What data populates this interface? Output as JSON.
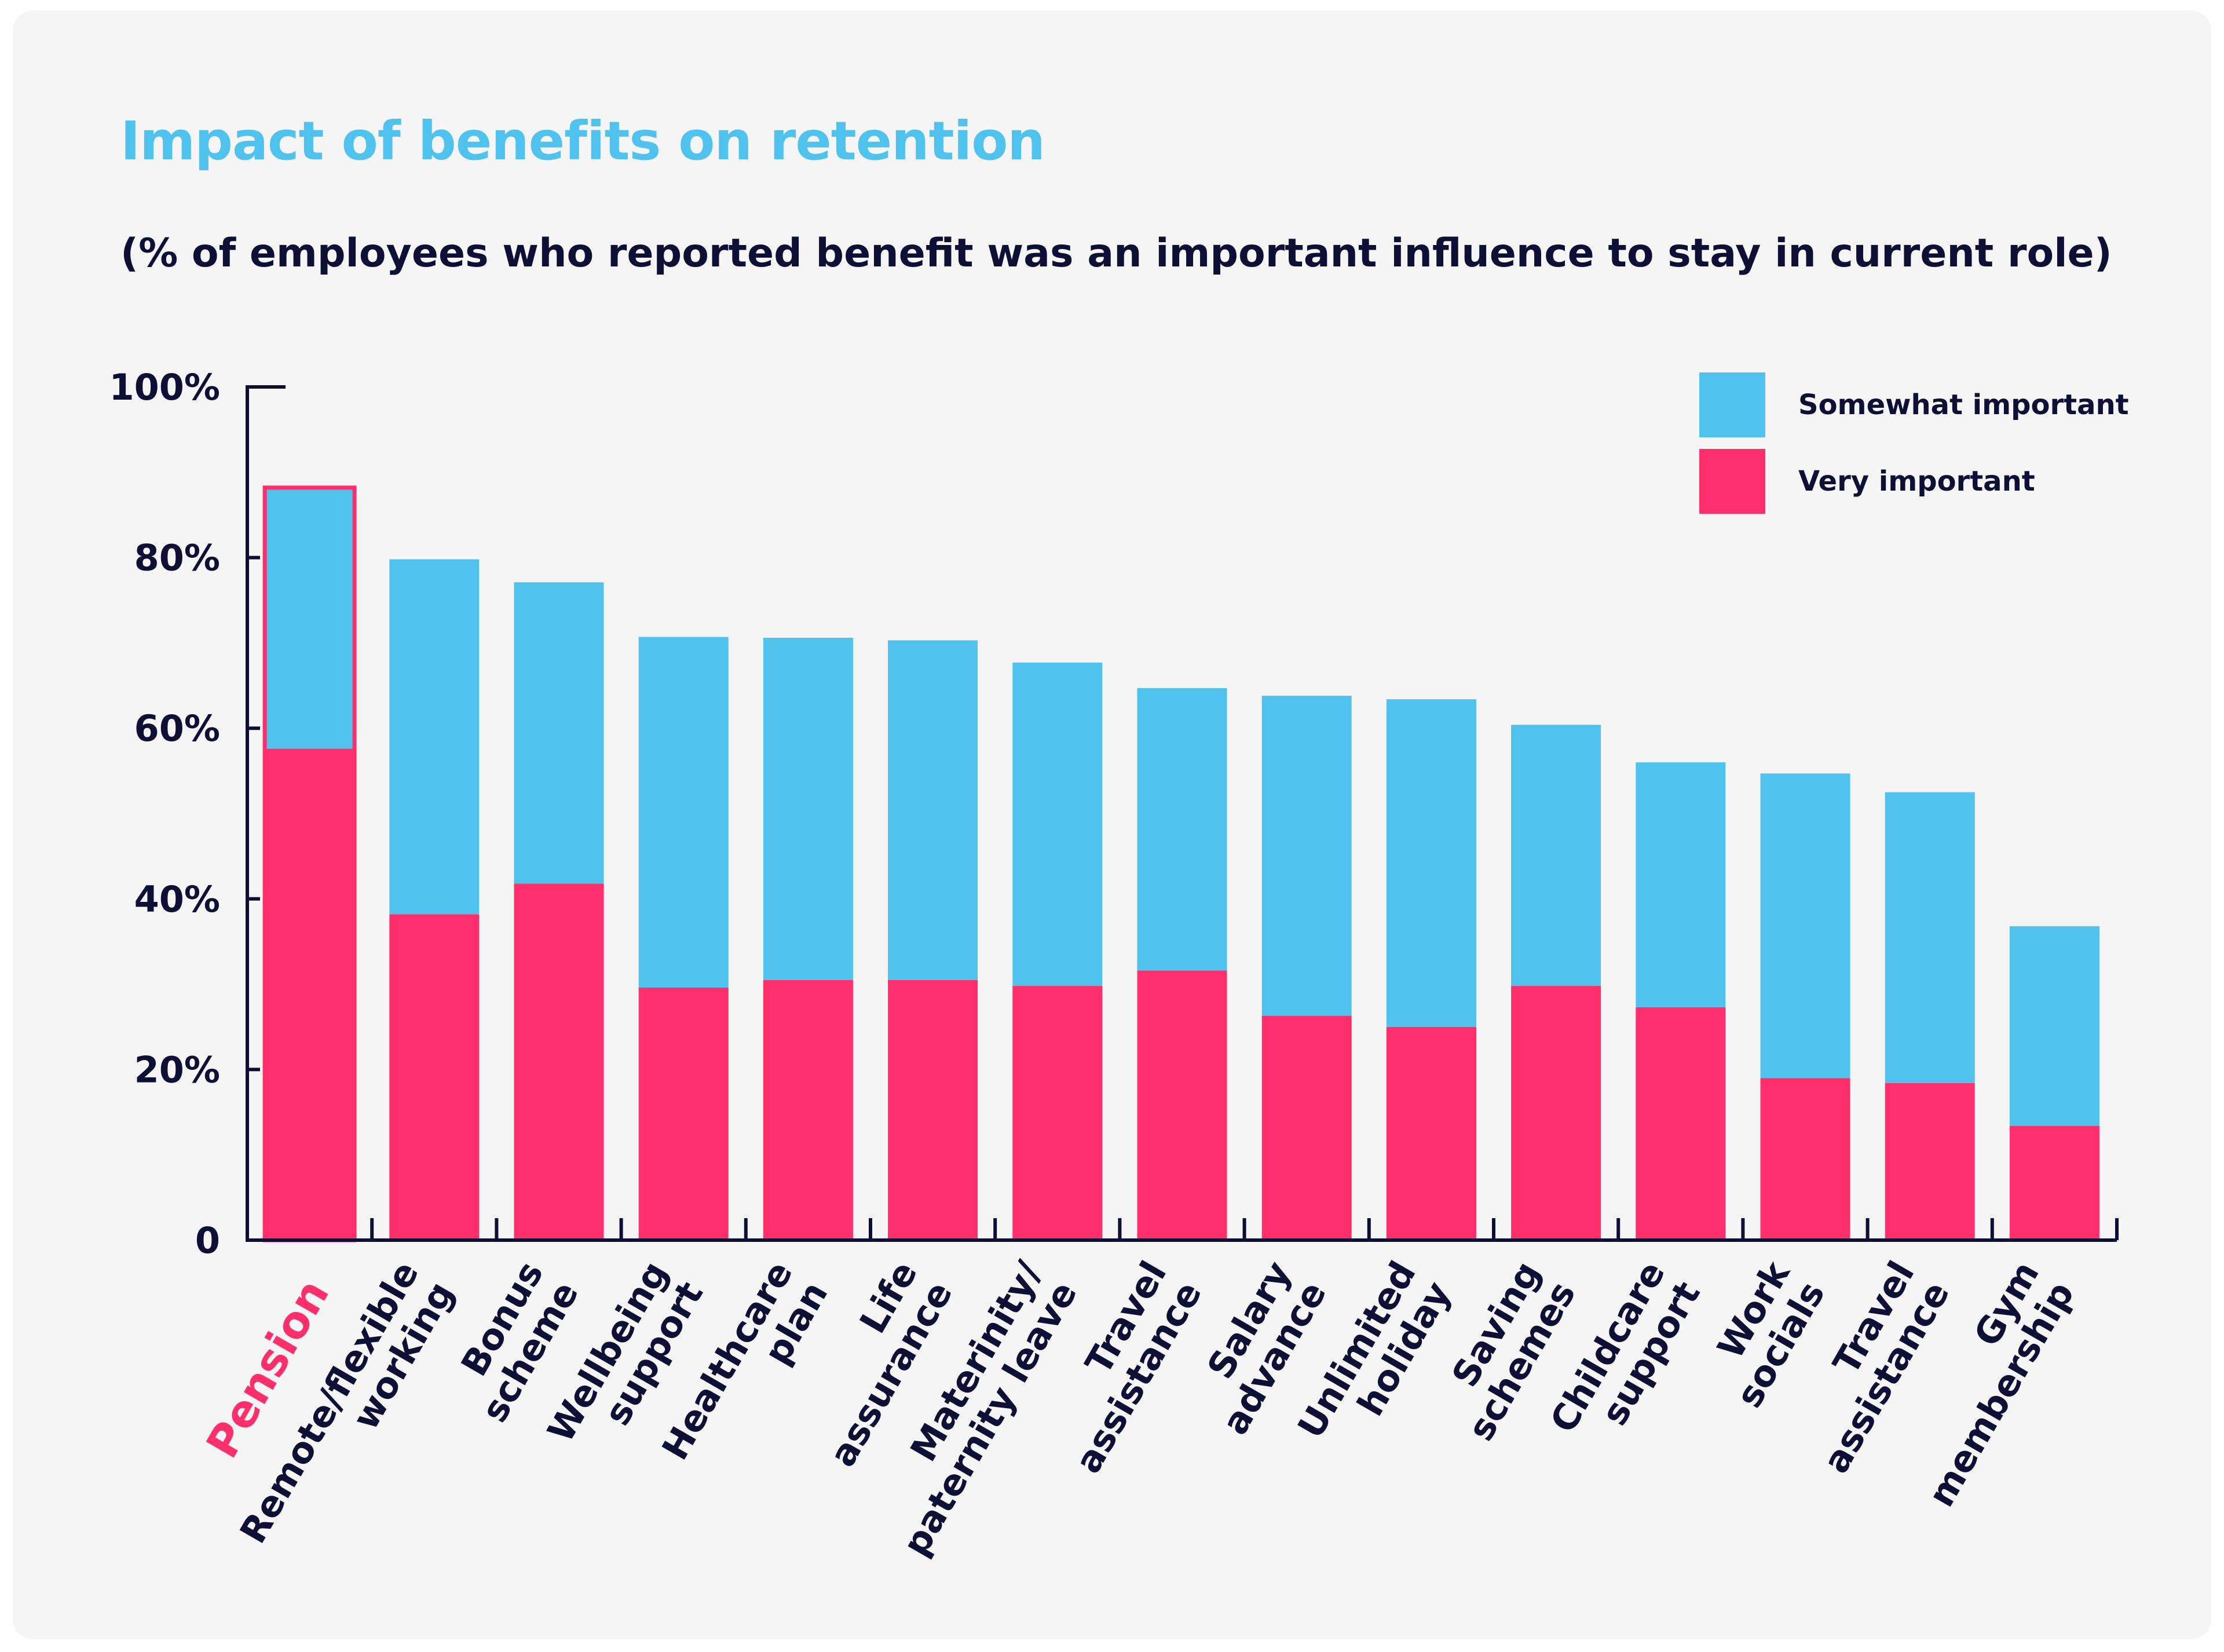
{
  "chart_data": {
    "type": "bar",
    "stacked": true,
    "title": "Impact of benefits on retention",
    "subtitle": "(% of employees who reported benefit was an important influence to stay in current role)",
    "categories": [
      "Pension",
      "Remote/flexible working",
      "Bonus scheme",
      "Wellbeing support",
      "Healthcare plan",
      "Life assurance",
      "Materinity/ paternity leave",
      "Travel assistance",
      "Salary advance",
      "Unlimited holiday",
      "Saving schemes",
      "Childcare support",
      "Work socials",
      "Travel assistance",
      "Gym membership"
    ],
    "category_lines": [
      [
        "Pension"
      ],
      [
        "Remote/flexible",
        "working"
      ],
      [
        "Bonus",
        "scheme"
      ],
      [
        "Wellbeing",
        "support"
      ],
      [
        "Healthcare",
        "plan"
      ],
      [
        "Life",
        "assurance"
      ],
      [
        "Materinity/",
        "paternity leave"
      ],
      [
        "Travel",
        "assistance"
      ],
      [
        "Salary",
        "advance"
      ],
      [
        "Unlimited",
        "holiday"
      ],
      [
        "Saving",
        "schemes"
      ],
      [
        "Childcare",
        "support"
      ],
      [
        "Work",
        "socials"
      ],
      [
        "Travel",
        "assistance"
      ],
      [
        "Gym",
        "membership"
      ]
    ],
    "highlighted_category_index": 0,
    "series": [
      {
        "name": "Very important",
        "color": "#ff2f6b",
        "values": [
          57.6,
          38.2,
          41.8,
          29.6,
          30.5,
          30.5,
          29.8,
          31.6,
          26.3,
          25.0,
          29.8,
          27.3,
          19.0,
          18.4,
          13.4
        ]
      },
      {
        "name": "Somewhat important",
        "color": "#4fc3ee",
        "values": [
          30.6,
          41.6,
          35.3,
          41.1,
          40.1,
          39.8,
          37.9,
          33.1,
          37.5,
          38.4,
          30.6,
          28.7,
          35.7,
          34.1,
          23.4
        ]
      }
    ],
    "legend": {
      "position": "top-right",
      "entries": [
        "Somewhat important",
        "Very important"
      ]
    },
    "y_ticks": [
      "0",
      "20%",
      "40%",
      "60%",
      "80%",
      "100%"
    ],
    "ylim": [
      0,
      100
    ],
    "xlabel": "",
    "ylabel": "",
    "grid": false,
    "colors": {
      "text": "#0d1034",
      "title": "#4fc3ee",
      "highlight": "#ff2f6b",
      "axis": "#0d1034"
    }
  }
}
